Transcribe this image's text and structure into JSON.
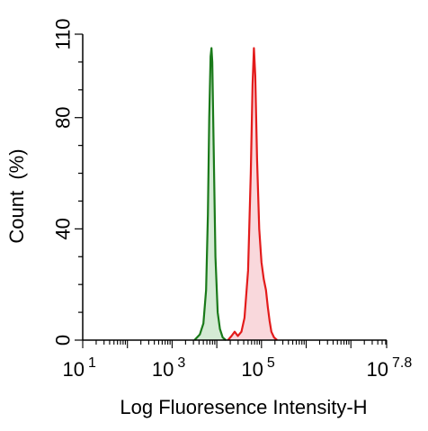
{
  "chart_data": {
    "type": "area",
    "xlabel": "Log Fluoresence Intensity-H",
    "ylabel": "Count  (%)",
    "x_scale": "log10",
    "xlim": [
      1,
      7.8
    ],
    "ylim": [
      0,
      110
    ],
    "x_ticks": [
      {
        "value": 1,
        "base": "10",
        "exp": "1"
      },
      {
        "value": 3,
        "base": "10",
        "exp": "3"
      },
      {
        "value": 5,
        "base": "10",
        "exp": "5"
      },
      {
        "value": 7.8,
        "base": "10",
        "exp": "7.8"
      }
    ],
    "y_ticks": [
      {
        "value": 0,
        "label": "0"
      },
      {
        "value": 40,
        "label": "40"
      },
      {
        "value": 80,
        "label": "80"
      },
      {
        "value": 110,
        "label": "110"
      }
    ],
    "grid": false,
    "series": [
      {
        "color": "#1a7a1a",
        "fill": "#d4ead4",
        "points": [
          [
            3.5,
            0
          ],
          [
            3.62,
            2
          ],
          [
            3.7,
            6
          ],
          [
            3.76,
            18
          ],
          [
            3.8,
            45
          ],
          [
            3.83,
            80
          ],
          [
            3.86,
            102
          ],
          [
            3.88,
            105
          ],
          [
            3.9,
            100
          ],
          [
            3.93,
            70
          ],
          [
            3.97,
            30
          ],
          [
            4.02,
            10
          ],
          [
            4.07,
            4
          ],
          [
            4.13,
            1
          ],
          [
            4.2,
            0
          ]
        ]
      },
      {
        "color": "#e31b1b",
        "fill": "#f9d8dc",
        "points": [
          [
            4.25,
            0
          ],
          [
            4.33,
            1.5
          ],
          [
            4.4,
            3
          ],
          [
            4.47,
            1.5
          ],
          [
            4.55,
            3
          ],
          [
            4.62,
            8
          ],
          [
            4.7,
            25
          ],
          [
            4.76,
            60
          ],
          [
            4.8,
            92
          ],
          [
            4.83,
            105
          ],
          [
            4.86,
            95
          ],
          [
            4.9,
            65
          ],
          [
            4.95,
            40
          ],
          [
            5.0,
            28
          ],
          [
            5.05,
            22
          ],
          [
            5.1,
            18
          ],
          [
            5.14,
            12
          ],
          [
            5.18,
            7
          ],
          [
            5.22,
            3
          ],
          [
            5.28,
            1
          ],
          [
            5.35,
            0
          ]
        ]
      }
    ]
  }
}
